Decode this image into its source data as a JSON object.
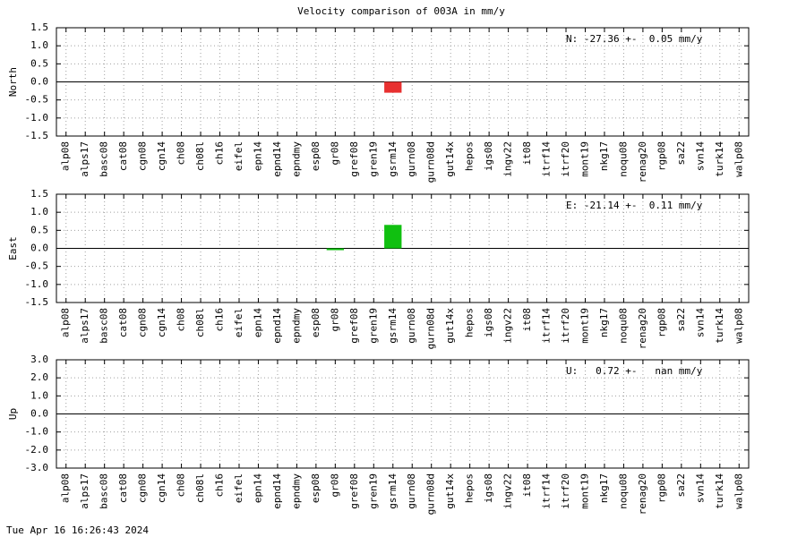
{
  "title": "Velocity comparison of 003A in mm/y",
  "footer": "Tue Apr 16 16:26:43 2024",
  "chart_data": [
    {
      "type": "bar",
      "y_label": "North",
      "annotation": "N: -27.36 +-  0.05 mm/y",
      "color": "#e83030",
      "grid": true,
      "categories": [
        "alp08",
        "alps17",
        "basc08",
        "cat08",
        "cgn08",
        "cgn14",
        "ch08",
        "ch08l",
        "ch16",
        "eifel",
        "epn14",
        "epnd14",
        "epndmy",
        "esp08",
        "gr08",
        "gref08",
        "gren19",
        "gsrm14",
        "gurn08",
        "gurn08d",
        "gut14x",
        "hepos",
        "igs08",
        "ingv22",
        "it08",
        "itrf14",
        "itrf20",
        "mont19",
        "nkg17",
        "noqu08",
        "renag20",
        "rgp08",
        "sa22",
        "svn14",
        "turk14",
        "walp08"
      ],
      "values": [
        0,
        0,
        0,
        0,
        0,
        0,
        0,
        0,
        0,
        0,
        0,
        0,
        0,
        0,
        0,
        0,
        0,
        -0.3,
        0,
        0,
        0,
        0,
        0,
        0,
        0,
        0,
        0,
        0,
        0,
        0,
        0,
        0,
        0,
        0,
        0,
        0
      ],
      "ylim": [
        -1.5,
        1.5
      ],
      "yticks": [
        1.5,
        {
          "value": 1,
          "label": "1.0"
        },
        0.5,
        {
          "value": 0,
          "label": "0.0"
        },
        -0.5,
        {
          "value": -1,
          "label": "-1.0"
        },
        -1.5
      ]
    },
    {
      "type": "bar",
      "y_label": "East",
      "annotation": "E: -21.14 +-  0.11 mm/y",
      "color": "#10c010",
      "grid": true,
      "categories": [
        "alp08",
        "alps17",
        "basc08",
        "cat08",
        "cgn08",
        "cgn14",
        "ch08",
        "ch08l",
        "ch16",
        "eifel",
        "epn14",
        "epnd14",
        "epndmy",
        "esp08",
        "gr08",
        "gref08",
        "gren19",
        "gsrm14",
        "gurn08",
        "gurn08d",
        "gut14x",
        "hepos",
        "igs08",
        "ingv22",
        "it08",
        "itrf14",
        "itrf20",
        "mont19",
        "nkg17",
        "noqu08",
        "renag20",
        "rgp08",
        "sa22",
        "svn14",
        "turk14",
        "walp08"
      ],
      "values": [
        0,
        0,
        0,
        0,
        0,
        0,
        0,
        0,
        0,
        0,
        0,
        0,
        0,
        0,
        -0.05,
        0,
        0,
        0.65,
        0,
        0,
        0,
        0,
        0,
        0,
        0,
        0,
        0,
        0,
        0,
        0,
        0,
        0,
        0,
        0,
        0,
        0
      ],
      "ylim": [
        -1.5,
        1.5
      ],
      "yticks": [
        1.5,
        {
          "value": 1,
          "label": "1.0"
        },
        0.5,
        {
          "value": 0,
          "label": "0.0"
        },
        -0.5,
        {
          "value": -1,
          "label": "-1.0"
        },
        -1.5
      ]
    },
    {
      "type": "bar",
      "y_label": "Up",
      "annotation": "U:   0.72 +-   nan mm/y",
      "color": "#3050e0",
      "grid": true,
      "categories": [
        "alp08",
        "alps17",
        "basc08",
        "cat08",
        "cgn08",
        "cgn14",
        "ch08",
        "ch08l",
        "ch16",
        "eifel",
        "epn14",
        "epnd14",
        "epndmy",
        "esp08",
        "gr08",
        "gref08",
        "gren19",
        "gsrm14",
        "gurn08",
        "gurn08d",
        "gut14x",
        "hepos",
        "igs08",
        "ingv22",
        "it08",
        "itrf14",
        "itrf20",
        "mont19",
        "nkg17",
        "noqu08",
        "renag20",
        "rgp08",
        "sa22",
        "svn14",
        "turk14",
        "walp08"
      ],
      "values": [
        0,
        0,
        0,
        0,
        0,
        0,
        0,
        0,
        0,
        0,
        0,
        0,
        0,
        0,
        0,
        0,
        0,
        0,
        0,
        0,
        0,
        0,
        0,
        0,
        0,
        0,
        0,
        0,
        0,
        0,
        0,
        0,
        0,
        0,
        0,
        0
      ],
      "ylim": [
        -3,
        3
      ],
      "yticks": [
        {
          "value": 3,
          "label": "3.0"
        },
        {
          "value": 2,
          "label": "2.0"
        },
        {
          "value": 1,
          "label": "1.0"
        },
        {
          "value": 0,
          "label": "0.0"
        },
        {
          "value": -1,
          "label": "-1.0"
        },
        {
          "value": -2,
          "label": "-2.0"
        },
        {
          "value": -3,
          "label": "-3.0"
        }
      ]
    }
  ]
}
